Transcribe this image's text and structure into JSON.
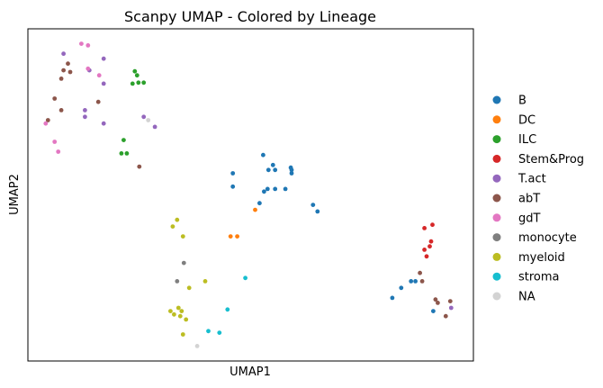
{
  "chart_data": {
    "type": "scatter",
    "title": "Scanpy UMAP - Colored by Lineage",
    "xlabel": "UMAP1",
    "ylabel": "UMAP2",
    "xlim": [
      0,
      100
    ],
    "ylim": [
      0,
      100
    ],
    "ticks_shown": false,
    "grid": false,
    "legend_position": "right, outside plot",
    "series": [
      {
        "name": "B",
        "color": "#1f77b4",
        "points": [
          [
            46.0,
            56.5
          ],
          [
            46.0,
            52.5
          ],
          [
            52.8,
            62.0
          ],
          [
            54.0,
            57.5
          ],
          [
            55.0,
            59.0
          ],
          [
            55.5,
            57.5
          ],
          [
            53.8,
            51.8
          ],
          [
            53.0,
            51.0
          ],
          [
            52.0,
            47.5
          ],
          [
            55.5,
            51.8
          ],
          [
            57.8,
            51.8
          ],
          [
            59.0,
            58.2
          ],
          [
            59.2,
            57.5
          ],
          [
            59.2,
            56.5
          ],
          [
            64.0,
            47.0
          ],
          [
            65.0,
            45.0
          ],
          [
            86.0,
            24.0
          ],
          [
            87.0,
            24.0
          ],
          [
            83.8,
            22.0
          ],
          [
            81.8,
            19.0
          ],
          [
            91.0,
            15.0
          ]
        ]
      },
      {
        "name": "DC",
        "color": "#ff7f0e",
        "points": [
          [
            51.0,
            45.5
          ],
          [
            45.5,
            37.5
          ],
          [
            47.0,
            37.5
          ]
        ]
      },
      {
        "name": "ILC",
        "color": "#2ca02c",
        "points": [
          [
            24.0,
            87.2
          ],
          [
            24.5,
            86.0
          ],
          [
            23.5,
            83.5
          ],
          [
            24.8,
            83.8
          ],
          [
            26.0,
            83.8
          ],
          [
            21.5,
            66.5
          ],
          [
            21.0,
            62.5
          ],
          [
            22.2,
            62.5
          ]
        ]
      },
      {
        "name": "Stem&Prog",
        "color": "#d62728",
        "points": [
          [
            90.8,
            41.0
          ],
          [
            89.0,
            40.0
          ],
          [
            90.5,
            36.0
          ],
          [
            90.2,
            34.5
          ],
          [
            89.5,
            31.5
          ],
          [
            89.0,
            33.5
          ]
        ]
      },
      {
        "name": "T.act",
        "color": "#9467bd",
        "points": [
          [
            8.0,
            92.5
          ],
          [
            17.0,
            91.0
          ],
          [
            13.8,
            87.5
          ],
          [
            17.0,
            83.5
          ],
          [
            12.8,
            75.5
          ],
          [
            12.8,
            73.5
          ],
          [
            17.0,
            71.5
          ],
          [
            26.0,
            73.5
          ],
          [
            28.5,
            70.5
          ],
          [
            95.0,
            16.0
          ]
        ]
      },
      {
        "name": "abT",
        "color": "#8c564b",
        "points": [
          [
            9.0,
            89.5
          ],
          [
            8.0,
            87.5
          ],
          [
            9.5,
            87.0
          ],
          [
            7.5,
            85.0
          ],
          [
            6.0,
            79.0
          ],
          [
            7.5,
            75.5
          ],
          [
            15.8,
            78.0
          ],
          [
            4.5,
            72.5
          ],
          [
            25.0,
            58.5
          ],
          [
            91.5,
            18.5
          ],
          [
            92.0,
            17.5
          ],
          [
            94.8,
            18.0
          ],
          [
            93.8,
            13.5
          ],
          [
            88.5,
            24.0
          ],
          [
            88.0,
            26.5
          ]
        ]
      },
      {
        "name": "gdT",
        "color": "#e377c2",
        "points": [
          [
            12.0,
            95.5
          ],
          [
            13.5,
            95.0
          ],
          [
            13.5,
            88.0
          ],
          [
            16.0,
            86.0
          ],
          [
            4.0,
            71.5
          ],
          [
            6.0,
            66.0
          ],
          [
            6.8,
            63.0
          ]
        ]
      },
      {
        "name": "monocyte",
        "color": "#7f7f7f",
        "points": [
          [
            35.0,
            29.5
          ],
          [
            33.5,
            24.0
          ]
        ]
      },
      {
        "name": "myeloid",
        "color": "#bcbd22",
        "points": [
          [
            33.5,
            42.5
          ],
          [
            32.5,
            40.5
          ],
          [
            34.8,
            37.5
          ],
          [
            39.8,
            24.0
          ],
          [
            36.2,
            22.0
          ],
          [
            33.8,
            16.0
          ],
          [
            34.5,
            15.0
          ],
          [
            32.8,
            14.0
          ],
          [
            34.2,
            13.5
          ],
          [
            35.5,
            12.5
          ],
          [
            32.0,
            15.0
          ],
          [
            34.8,
            8.0
          ]
        ]
      },
      {
        "name": "stroma",
        "color": "#17becf",
        "points": [
          [
            48.8,
            25.0
          ],
          [
            44.8,
            15.5
          ],
          [
            40.5,
            9.0
          ],
          [
            43.0,
            8.5
          ]
        ]
      },
      {
        "name": "NA",
        "color": "#d3d3d3",
        "points": [
          [
            27.0,
            72.5
          ],
          [
            38.0,
            4.5
          ]
        ]
      }
    ]
  }
}
